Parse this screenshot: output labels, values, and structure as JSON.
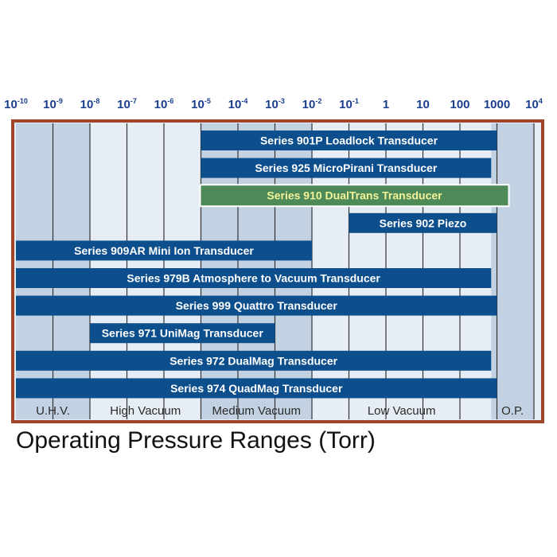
{
  "caption": "Operating Pressure Ranges (Torr)",
  "chart_data": {
    "type": "bar",
    "orientation": "horizontal-range",
    "title": "Operating Pressure Ranges (Torr)",
    "x_ticks": [
      {
        "base": "10",
        "exp": "-10"
      },
      {
        "base": "10",
        "exp": "-9"
      },
      {
        "base": "10",
        "exp": "-8"
      },
      {
        "base": "10",
        "exp": "-7"
      },
      {
        "base": "10",
        "exp": "-6"
      },
      {
        "base": "10",
        "exp": "-5"
      },
      {
        "base": "10",
        "exp": "-4"
      },
      {
        "base": "10",
        "exp": "-3"
      },
      {
        "base": "10",
        "exp": "-2"
      },
      {
        "base": "10",
        "exp": "-1"
      },
      {
        "base": "1",
        "exp": ""
      },
      {
        "base": "10",
        "exp": ""
      },
      {
        "base": "100",
        "exp": ""
      },
      {
        "base": "1000",
        "exp": ""
      },
      {
        "base": "10",
        "exp": "4"
      }
    ],
    "x_scale": "log",
    "series": [
      {
        "label": "Series 901P Loadlock Transducer",
        "start": 1e-05,
        "end": 1000,
        "highlight": false
      },
      {
        "label": "Series 925 MicroPirani Transducer",
        "start": 1e-05,
        "end": 700,
        "highlight": false
      },
      {
        "label": "Series 910 DualTrans Transducer",
        "start": 1e-05,
        "end": 2000,
        "highlight": true
      },
      {
        "label": "Series 902 Piezo",
        "start": 0.1,
        "end": 1000,
        "highlight": false
      },
      {
        "label": "Series 909AR Mini Ion Transducer",
        "start": 1e-10,
        "end": 0.01,
        "highlight": false
      },
      {
        "label": "Series 979B Atmosphere to Vacuum Transducer",
        "start": 1e-10,
        "end": 700,
        "highlight": false
      },
      {
        "label": "Series 999 Quattro Transducer",
        "start": 1e-10,
        "end": 1000,
        "highlight": false
      },
      {
        "label": "Series 971 UniMag Transducer",
        "start": 1e-08,
        "end": 0.001,
        "highlight": false
      },
      {
        "label": "Series 972 DualMag Transducer",
        "start": 1e-10,
        "end": 700,
        "highlight": false
      },
      {
        "label": "Series 974 QuadMag Transducer",
        "start": 1e-10,
        "end": 1000,
        "highlight": false
      }
    ],
    "regions": [
      {
        "label": "U.H.V.",
        "start": 1e-10,
        "end": 1e-08
      },
      {
        "label": "High Vacuum",
        "start": 1e-08,
        "end": 1e-05
      },
      {
        "label": "Medium Vacuum",
        "start": 1e-05,
        "end": 0.01
      },
      {
        "label": "Low Vacuum",
        "start": 0.01,
        "end": 700
      },
      {
        "label": "O.P.",
        "start": 700,
        "end": 10000
      }
    ],
    "colors": {
      "bar": "#0d4e8d",
      "highlight_bar": "#4e8a57",
      "highlight_text": "#f4f29a",
      "frame": "#a0452a",
      "tick_text": "#1a3e8c",
      "band_light": "#e6edf4",
      "band_dark": "#c3d2e2"
    }
  }
}
